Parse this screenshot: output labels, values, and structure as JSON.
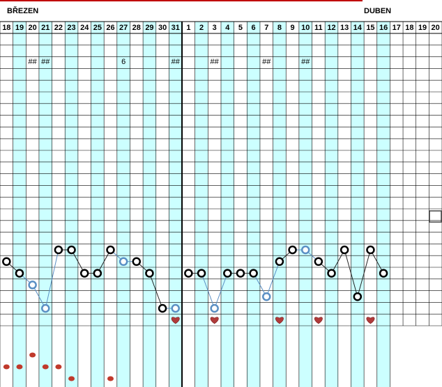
{
  "header": {
    "months": [
      "BŘEZEN",
      "DUBEN"
    ]
  },
  "days": [
    18,
    19,
    20,
    21,
    22,
    23,
    24,
    25,
    26,
    27,
    28,
    29,
    30,
    31,
    1,
    2,
    3,
    4,
    5,
    6,
    7,
    8,
    9,
    10,
    11,
    12,
    13,
    14,
    15,
    16,
    17,
    18,
    19,
    20
  ],
  "notes": [
    null,
    null,
    "##",
    "##",
    null,
    null,
    null,
    null,
    null,
    "6",
    null,
    null,
    null,
    "##",
    null,
    null,
    "##",
    null,
    null,
    null,
    "##",
    null,
    null,
    "##",
    null,
    null,
    null,
    null,
    null,
    null,
    null,
    null,
    null,
    null
  ],
  "temperature_levels": [
    4,
    3,
    2,
    0,
    5,
    5,
    3,
    3,
    5,
    4,
    4,
    3,
    0,
    0,
    3,
    3,
    0,
    3,
    3,
    3,
    1,
    4,
    5,
    5,
    4,
    3,
    5,
    1,
    5,
    3,
    null,
    null,
    null,
    null
  ],
  "marker_kinds": [
    "black",
    "black",
    "blue",
    "blue",
    "black",
    "black",
    "black",
    "black",
    "black",
    "blue",
    "black",
    "black",
    "black",
    "blue",
    "black",
    "black",
    "blue",
    "black",
    "black",
    "black",
    "blue",
    "black",
    "black",
    "blue",
    "black",
    "black",
    "black",
    "black",
    "black",
    "black",
    null,
    null,
    null,
    null
  ],
  "hearts": [
    false,
    false,
    false,
    false,
    false,
    false,
    false,
    false,
    false,
    false,
    false,
    false,
    false,
    true,
    false,
    false,
    true,
    false,
    false,
    false,
    false,
    true,
    false,
    false,
    true,
    false,
    false,
    false,
    true,
    false,
    false,
    false,
    false,
    false
  ],
  "dot_levels": [
    1,
    1,
    2,
    1,
    1,
    0,
    null,
    null,
    0,
    null,
    null,
    null,
    null,
    null,
    null,
    null,
    null,
    null,
    null,
    null,
    null,
    null,
    null,
    null,
    null,
    null,
    null,
    null,
    null,
    null,
    null,
    null,
    null,
    null
  ]
}
